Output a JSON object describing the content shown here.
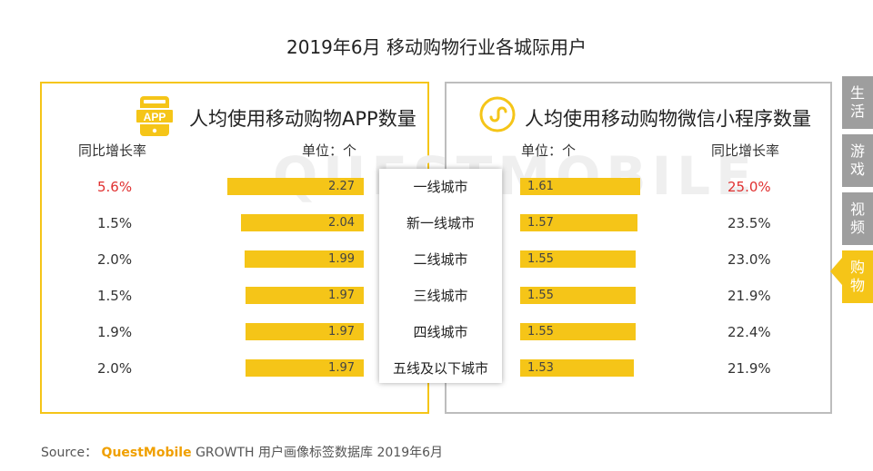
{
  "title": "2019年6月 移动购物行业各城际用户",
  "watermark": "QUESTMOBILE",
  "cities": [
    "一线城市",
    "新一线城市",
    "二线城市",
    "三线城市",
    "四线城市",
    "五线及以下城市"
  ],
  "left_panel": {
    "icon_label": "APP",
    "heading": "人均使用移动购物APP数量",
    "growth_header": "同比增长率",
    "unit_label": "单位：个"
  },
  "right_panel": {
    "heading": "人均使用移动购物微信小程序数量",
    "growth_header": "同比增长率",
    "unit_label": "单位：个"
  },
  "chart_data": [
    {
      "type": "bar",
      "categories": [
        "一线城市",
        "新一线城市",
        "二线城市",
        "三线城市",
        "四线城市",
        "五线及以下城市"
      ],
      "title": "人均使用移动购物APP数量",
      "unit": "单位：个",
      "values": [
        2.27,
        2.04,
        1.99,
        1.97,
        1.97,
        1.97
      ],
      "value_labels": [
        "2.27",
        "2.04",
        "1.99",
        "1.97",
        "1.97",
        "1.97"
      ],
      "growth_rates": [
        "5.6%",
        "1.5%",
        "2.0%",
        "1.5%",
        "1.9%",
        "2.0%"
      ],
      "highlight_index": 0,
      "orientation": "horizontal",
      "direction": "right-to-left"
    },
    {
      "type": "bar",
      "categories": [
        "一线城市",
        "新一线城市",
        "二线城市",
        "三线城市",
        "四线城市",
        "五线及以下城市"
      ],
      "title": "人均使用移动购物微信小程序数量",
      "unit": "单位：个",
      "values": [
        1.61,
        1.57,
        1.55,
        1.55,
        1.55,
        1.53
      ],
      "value_labels": [
        "1.61",
        "1.57",
        "1.55",
        "1.55",
        "1.55",
        "1.53"
      ],
      "growth_rates": [
        "25.0%",
        "23.5%",
        "23.0%",
        "21.9%",
        "22.4%",
        "21.9%"
      ],
      "highlight_index": 0,
      "orientation": "horizontal",
      "direction": "left-to-right"
    }
  ],
  "side_tabs": [
    {
      "label": "生活",
      "active": false
    },
    {
      "label": "游戏",
      "active": false
    },
    {
      "label": "视频",
      "active": false
    },
    {
      "label": "购物",
      "active": true
    }
  ],
  "source": {
    "prefix": "Source：",
    "brand": "QuestMobile",
    "text": "GROWTH 用户画像标签数据库 2019年6月"
  },
  "colors": {
    "accent": "#f5c518",
    "highlight": "#e03030",
    "tab_inactive": "#9e9e9e"
  }
}
